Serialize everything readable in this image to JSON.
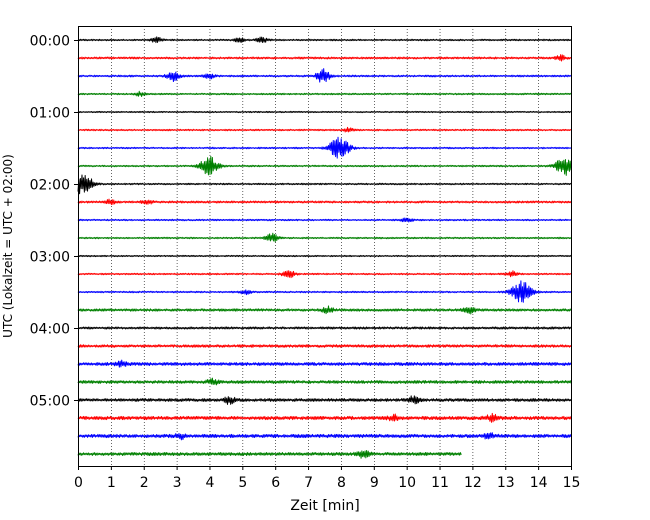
{
  "chart_data": {
    "type": "line",
    "xlabel": "Zeit  [min]",
    "ylabel": "UTC (Lokalzeit = UTC + 02:00)",
    "xlim": [
      0,
      15
    ],
    "x_ticks": [
      "0",
      "1",
      "2",
      "3",
      "4",
      "5",
      "6",
      "7",
      "8",
      "9",
      "10",
      "11",
      "12",
      "13",
      "14",
      "15"
    ],
    "y_ticks": [
      "00:00",
      "01:00",
      "02:00",
      "03:00",
      "04:00",
      "05:00"
    ],
    "trace_interval_minutes": 15,
    "grid": "vertical dotted",
    "colors": [
      "#000000",
      "#ff0000",
      "#0000ff",
      "#008000"
    ],
    "traces": [
      {
        "start": "00:00",
        "end_minute": 15,
        "amplitude": 0.35,
        "events": [
          {
            "t": 2.4,
            "a": 1.0
          },
          {
            "t": 4.9,
            "a": 0.9
          },
          {
            "t": 5.6,
            "a": 1.0
          }
        ]
      },
      {
        "start": "00:15",
        "end_minute": 15,
        "amplitude": 0.45,
        "events": [
          {
            "t": 14.7,
            "a": 1.0
          }
        ]
      },
      {
        "start": "00:30",
        "end_minute": 15,
        "amplitude": 0.4,
        "events": [
          {
            "t": 2.9,
            "a": 1.8
          },
          {
            "t": 7.4,
            "a": 1.4
          },
          {
            "t": 7.5,
            "a": 1.6
          },
          {
            "t": 4.0,
            "a": 0.9
          }
        ]
      },
      {
        "start": "00:45",
        "end_minute": 15,
        "amplitude": 0.35,
        "events": [
          {
            "t": 1.9,
            "a": 0.8
          }
        ]
      },
      {
        "start": "01:00",
        "end_minute": 15,
        "amplitude": 0.3,
        "events": []
      },
      {
        "start": "01:15",
        "end_minute": 15,
        "amplitude": 0.35,
        "events": [
          {
            "t": 8.2,
            "a": 0.8
          }
        ]
      },
      {
        "start": "01:30",
        "end_minute": 15,
        "amplitude": 0.35,
        "events": [
          {
            "t": 7.95,
            "a": 4.2
          }
        ]
      },
      {
        "start": "01:45",
        "end_minute": 15,
        "amplitude": 0.35,
        "events": [
          {
            "t": 4.0,
            "a": 3.6
          },
          {
            "t": 14.8,
            "a": 3.6
          }
        ]
      },
      {
        "start": "02:00",
        "end_minute": 15,
        "amplitude": 0.35,
        "events": [
          {
            "t": 0.15,
            "a": 4.0
          }
        ]
      },
      {
        "start": "02:15",
        "end_minute": 15,
        "amplitude": 0.45,
        "events": [
          {
            "t": 1.0,
            "a": 0.9
          },
          {
            "t": 2.1,
            "a": 1.0
          }
        ]
      },
      {
        "start": "02:30",
        "end_minute": 15,
        "amplitude": 0.35,
        "events": [
          {
            "t": 10.0,
            "a": 1.0
          }
        ]
      },
      {
        "start": "02:45",
        "end_minute": 15,
        "amplitude": 0.35,
        "events": [
          {
            "t": 5.9,
            "a": 1.6
          }
        ]
      },
      {
        "start": "03:00",
        "end_minute": 15,
        "amplitude": 0.3,
        "events": []
      },
      {
        "start": "03:15",
        "end_minute": 15,
        "amplitude": 0.35,
        "events": [
          {
            "t": 6.4,
            "a": 1.6
          },
          {
            "t": 13.2,
            "a": 1.0
          }
        ]
      },
      {
        "start": "03:30",
        "end_minute": 15,
        "amplitude": 0.35,
        "events": [
          {
            "t": 13.5,
            "a": 4.2
          },
          {
            "t": 5.1,
            "a": 0.8
          }
        ]
      },
      {
        "start": "03:45",
        "end_minute": 15,
        "amplitude": 0.55,
        "events": [
          {
            "t": 7.6,
            "a": 1.2
          },
          {
            "t": 11.9,
            "a": 1.2
          }
        ]
      },
      {
        "start": "04:00",
        "end_minute": 15,
        "amplitude": 0.5,
        "events": []
      },
      {
        "start": "04:15",
        "end_minute": 15,
        "amplitude": 0.6,
        "events": []
      },
      {
        "start": "04:30",
        "end_minute": 15,
        "amplitude": 0.7,
        "events": [
          {
            "t": 1.3,
            "a": 1.0
          }
        ]
      },
      {
        "start": "04:45",
        "end_minute": 15,
        "amplitude": 0.65,
        "events": [
          {
            "t": 4.1,
            "a": 1.0
          }
        ]
      },
      {
        "start": "05:00",
        "end_minute": 15,
        "amplitude": 0.65,
        "events": [
          {
            "t": 4.6,
            "a": 1.3
          },
          {
            "t": 10.2,
            "a": 1.4
          }
        ]
      },
      {
        "start": "05:15",
        "end_minute": 15,
        "amplitude": 0.75,
        "events": [
          {
            "t": 12.6,
            "a": 1.2
          },
          {
            "t": 9.6,
            "a": 1.0
          }
        ]
      },
      {
        "start": "05:30",
        "end_minute": 15,
        "amplitude": 0.75,
        "events": [
          {
            "t": 3.1,
            "a": 1.0
          },
          {
            "t": 12.5,
            "a": 1.0
          }
        ]
      },
      {
        "start": "05:45",
        "end_minute": 11.65,
        "amplitude": 0.7,
        "events": [
          {
            "t": 8.7,
            "a": 1.4
          }
        ]
      }
    ]
  }
}
